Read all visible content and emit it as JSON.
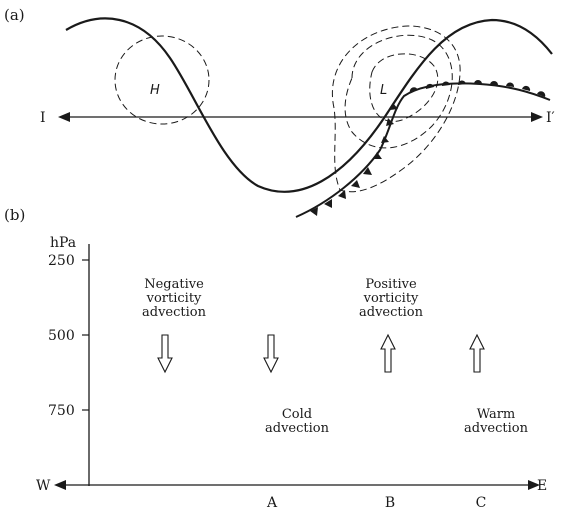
{
  "panel_a": {
    "label": "(a)",
    "high_label": "H",
    "low_label": "L",
    "section_left": "I",
    "section_right": "I′"
  },
  "panel_b": {
    "label": "(b)",
    "axis_unit": "hPa",
    "pressure_levels": [
      "250",
      "500",
      "750"
    ],
    "west": "W",
    "east": "E",
    "points": [
      "A",
      "B",
      "C"
    ],
    "annotations": {
      "negative_vorticity": [
        "Negative",
        "vorticity",
        "advection"
      ],
      "positive_vorticity": [
        "Positive",
        "vorticity",
        "advection"
      ],
      "cold_advection": [
        "Cold",
        "advection"
      ],
      "warm_advection": [
        "Warm",
        "advection"
      ]
    },
    "vertical_motion": [
      {
        "location": "left of A",
        "direction": "down"
      },
      {
        "location": "A",
        "direction": "down"
      },
      {
        "location": "B",
        "direction": "up"
      },
      {
        "location": "C",
        "direction": "up"
      }
    ]
  }
}
